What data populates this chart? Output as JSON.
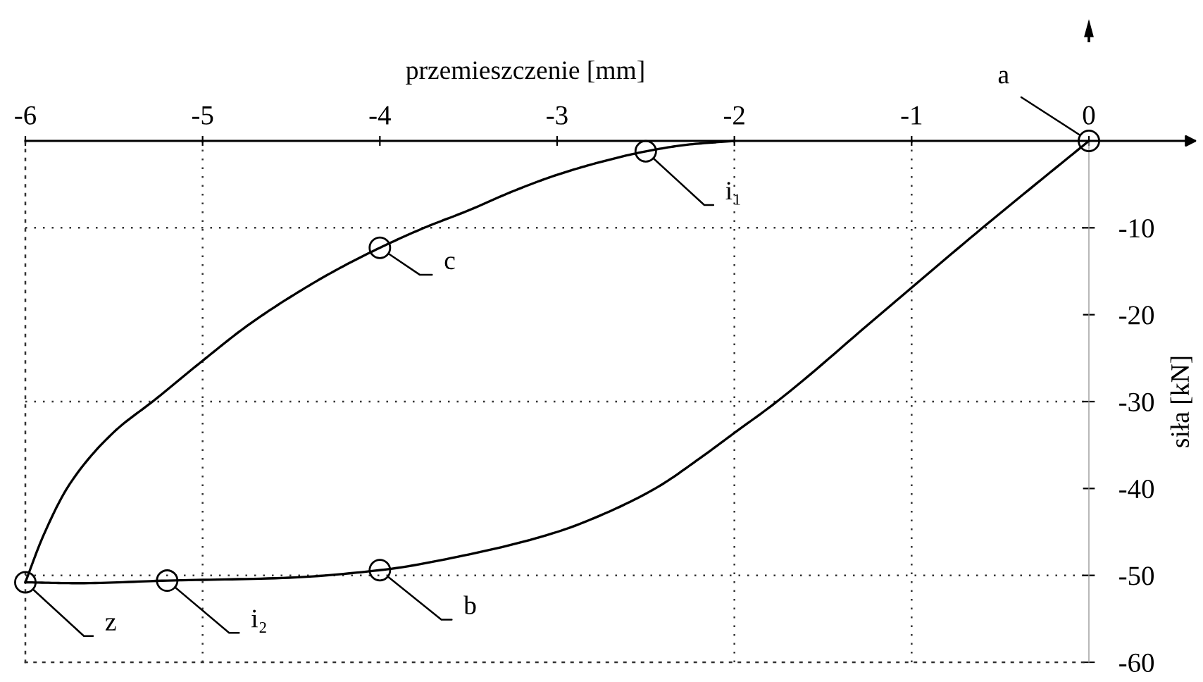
{
  "chart_data": {
    "type": "line",
    "xlabel": "przemieszczenie [mm]",
    "ylabel": "siła [kN]",
    "xlim": [
      -6,
      0
    ],
    "ylim": [
      -60,
      0
    ],
    "xticks": [
      -6,
      -5,
      -4,
      -3,
      -2,
      -1,
      0
    ],
    "yticks": [
      -60,
      -50,
      -40,
      -30,
      -20,
      -10
    ],
    "ref_lines": [
      {
        "axis": "y",
        "value": -10,
        "line_style": "dotted",
        "color": "#333333"
      },
      {
        "axis": "y",
        "value": -30,
        "line_style": "dotted",
        "color": "#333333"
      },
      {
        "axis": "y",
        "value": -50,
        "line_style": "dotted",
        "color": "#333333"
      },
      {
        "axis": "x",
        "value": -5,
        "line_style": "dotted",
        "color": "#333333"
      },
      {
        "axis": "x",
        "value": -2,
        "line_style": "dotted",
        "color": "#333333"
      },
      {
        "axis": "x",
        "value": -1,
        "line_style": "dotted",
        "color": "#333333"
      }
    ],
    "series": [
      {
        "color": "#000000",
        "marker": "none",
        "line_style": "solid",
        "x": [
          0,
          -0.6,
          -1.18,
          -1.76,
          -2,
          -2.2,
          -2.43,
          -2.7,
          -3,
          -3.5,
          -4,
          -4.55,
          -5.2,
          -5.7,
          -6
        ],
        "values": [
          0,
          -10,
          -20,
          -30,
          -33.6,
          -36.6,
          -39.8,
          -42.6,
          -45,
          -47.6,
          -49.4,
          -50.3,
          -50.6,
          -50.9,
          -50.8
        ]
      },
      {
        "color": "#000000",
        "marker": "none",
        "line_style": "solid",
        "x": [
          -6,
          -5.9,
          -5.75,
          -5.5,
          -5.27,
          -5,
          -4.75,
          -4.5,
          -4.25,
          -4,
          -3.75,
          -3.5,
          -3.25,
          -3,
          -2.75,
          -2.5,
          -2.25,
          -2
        ],
        "values": [
          -50.8,
          -45.5,
          -39.5,
          -33.5,
          -29.8,
          -25.3,
          -21.3,
          -17.9,
          -14.9,
          -12.3,
          -10,
          -8,
          -5.8,
          -3.9,
          -2.4,
          -1.2,
          -0.4,
          0
        ]
      },
      {
        "type": "scatter",
        "color": "#000000",
        "marker": "circle",
        "x": [
          0,
          -2.5,
          -4,
          -6,
          -5.2,
          -4
        ],
        "values": [
          0,
          -1.2,
          -12.3,
          -50.8,
          -50.6,
          -49.4
        ]
      }
    ],
    "annotations": [
      {
        "text": "a",
        "x": 0,
        "y": 0
      },
      {
        "text": "i₁",
        "x": -2.5,
        "y": -1.2
      },
      {
        "text": "c",
        "x": -4,
        "y": -12.3
      },
      {
        "text": "z",
        "x": -6,
        "y": -50.8
      },
      {
        "text": "i₂",
        "x": -5.2,
        "y": -50.6
      },
      {
        "text": "b",
        "x": -4,
        "y": -49.4
      }
    ]
  }
}
